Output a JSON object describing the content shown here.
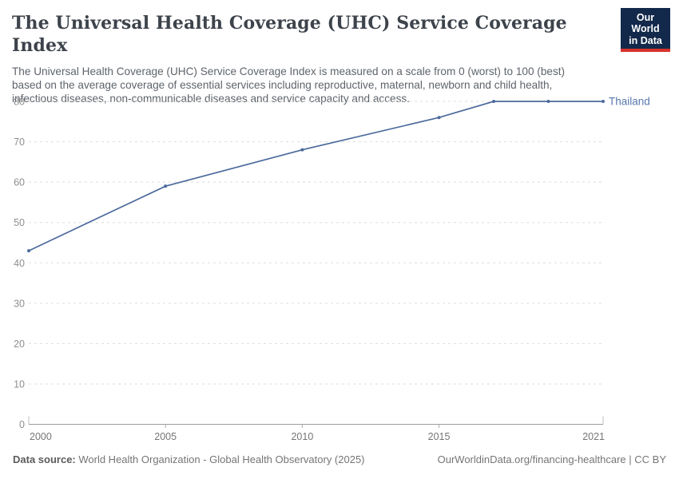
{
  "header": {
    "title": "The Universal Health Coverage (UHC) Service Coverage Index",
    "subtitle": "The Universal Health Coverage (UHC) Service Coverage Index is measured on a scale from 0 (worst) to 100 (best) based on the average coverage of essential services including reproductive, maternal, newborn and child health, infectious diseases, non-communicable diseases and service capacity and access.",
    "logo": {
      "line1": "Our World",
      "line2": "in Data",
      "bg_color": "#13294b",
      "accent_color": "#d7332c"
    }
  },
  "chart_data": {
    "type": "line",
    "title": "The Universal Health Coverage (UHC) Service Coverage Index",
    "x": [
      2000,
      2005,
      2010,
      2015,
      2017,
      2019,
      2021
    ],
    "series": [
      {
        "name": "Thailand",
        "color": "#4c6a9c",
        "label_color": "#5878ae",
        "values": [
          43,
          59,
          68,
          76,
          80,
          80,
          80
        ]
      }
    ],
    "xlim": [
      2000,
      2021
    ],
    "ylim": [
      0,
      80
    ],
    "yticks": [
      0,
      10,
      20,
      30,
      40,
      50,
      60,
      70,
      80
    ],
    "xticks": [
      2000,
      2005,
      2010,
      2015,
      2021
    ],
    "grid": "horizontal-dashed",
    "grid_color": "#dddddd",
    "axis_color": "#9c9c9c",
    "tick_label_color_y": "#8f8f8f",
    "tick_label_color_x": "#757575",
    "legend_position": "end-of-line"
  },
  "footer": {
    "source_label": "Data source:",
    "source_text": " World Health Organization - Global Health Observatory (2025)",
    "credit": "OurWorldinData.org/financing-healthcare | CC BY"
  }
}
